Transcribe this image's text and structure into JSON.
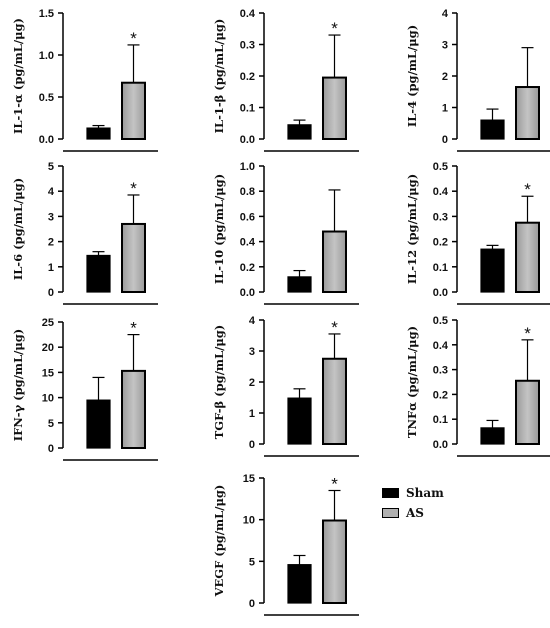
{
  "legend": {
    "items": [
      {
        "label": "Sham",
        "color": "#000000"
      },
      {
        "label": "AS",
        "color": "#b0b0b0"
      }
    ]
  },
  "chart_data": [
    {
      "type": "bar",
      "ylabel": "IL-1-α (pg/mL/μg)",
      "categories": [
        "Sham",
        "AS"
      ],
      "values": [
        0.13,
        0.67
      ],
      "errors": [
        0.03,
        0.45
      ],
      "ylim": [
        0,
        1.5
      ],
      "yticks": [
        "0.0",
        "0.5",
        "1.0",
        "1.5"
      ],
      "significant": [
        false,
        true
      ]
    },
    {
      "type": "bar",
      "ylabel": "IL-1-β (pg/mL/μg)",
      "categories": [
        "Sham",
        "AS"
      ],
      "values": [
        0.045,
        0.195
      ],
      "errors": [
        0.015,
        0.135
      ],
      "ylim": [
        0,
        0.4
      ],
      "yticks": [
        "0.0",
        "0.1",
        "0.2",
        "0.3",
        "0.4"
      ],
      "significant": [
        false,
        true
      ]
    },
    {
      "type": "bar",
      "ylabel": "IL-4 (pg/mL/μg)",
      "categories": [
        "Sham",
        "AS"
      ],
      "values": [
        0.6,
        1.65
      ],
      "errors": [
        0.35,
        1.25
      ],
      "ylim": [
        0,
        4
      ],
      "yticks": [
        "0",
        "1",
        "2",
        "3",
        "4"
      ],
      "significant": [
        false,
        false
      ]
    },
    {
      "type": "bar",
      "ylabel": "IL-6 (pg/mL/μg)",
      "categories": [
        "Sham",
        "AS"
      ],
      "values": [
        1.45,
        2.7
      ],
      "errors": [
        0.15,
        1.15
      ],
      "ylim": [
        0,
        5
      ],
      "yticks": [
        "0",
        "1",
        "2",
        "3",
        "4",
        "5"
      ],
      "significant": [
        false,
        true
      ]
    },
    {
      "type": "bar",
      "ylabel": "IL-10 (pg/mL/μg)",
      "categories": [
        "Sham",
        "AS"
      ],
      "values": [
        0.12,
        0.48
      ],
      "errors": [
        0.05,
        0.33
      ],
      "ylim": [
        0,
        1.0
      ],
      "yticks": [
        "0.0",
        "0.2",
        "0.4",
        "0.6",
        "0.8",
        "1.0"
      ],
      "significant": [
        false,
        false
      ]
    },
    {
      "type": "bar",
      "ylabel": "IL-12 (pg/mL/μg)",
      "categories": [
        "Sham",
        "AS"
      ],
      "values": [
        0.17,
        0.275
      ],
      "errors": [
        0.015,
        0.105
      ],
      "ylim": [
        0,
        0.5
      ],
      "yticks": [
        "0.0",
        "0.1",
        "0.2",
        "0.3",
        "0.4",
        "0.5"
      ],
      "significant": [
        false,
        true
      ]
    },
    {
      "type": "bar",
      "ylabel": "IFN-γ (pg/mL/μg)",
      "categories": [
        "Sham",
        "AS"
      ],
      "values": [
        9.5,
        15.3
      ],
      "errors": [
        4.5,
        7.2
      ],
      "ylim": [
        0,
        25
      ],
      "yticks": [
        "0",
        "5",
        "10",
        "15",
        "20",
        "25"
      ],
      "significant": [
        false,
        true
      ]
    },
    {
      "type": "bar",
      "ylabel": "TGF-β (pg/mL/μg)",
      "categories": [
        "Sham",
        "AS"
      ],
      "values": [
        1.48,
        2.75
      ],
      "errors": [
        0.3,
        0.8
      ],
      "ylim": [
        0,
        4
      ],
      "yticks": [
        "0",
        "1",
        "2",
        "3",
        "4"
      ],
      "significant": [
        false,
        true
      ]
    },
    {
      "type": "bar",
      "ylabel": "TNFα (pg/mL/μg)",
      "categories": [
        "Sham",
        "AS"
      ],
      "values": [
        0.065,
        0.255
      ],
      "errors": [
        0.03,
        0.165
      ],
      "ylim": [
        0,
        0.5
      ],
      "yticks": [
        "0.0",
        "0.1",
        "0.2",
        "0.3",
        "0.4",
        "0.5"
      ],
      "significant": [
        false,
        true
      ]
    },
    {
      "type": "bar",
      "ylabel": "VEGF (pg/mL/μg)",
      "categories": [
        "Sham",
        "AS"
      ],
      "values": [
        4.6,
        9.9
      ],
      "errors": [
        1.1,
        3.6
      ],
      "ylim": [
        0,
        15
      ],
      "yticks": [
        "0",
        "5",
        "10",
        "15"
      ],
      "significant": [
        false,
        true
      ]
    }
  ]
}
